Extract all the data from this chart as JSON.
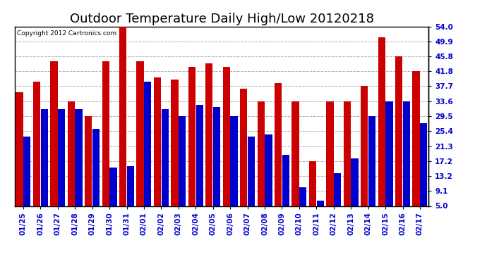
{
  "title": "Outdoor Temperature Daily High/Low 20120218",
  "copyright": "Copyright 2012 Cartronics.com",
  "dates": [
    "01/25",
    "01/26",
    "01/27",
    "01/28",
    "01/29",
    "01/30",
    "01/31",
    "02/01",
    "02/02",
    "02/03",
    "02/04",
    "02/05",
    "02/06",
    "02/07",
    "02/08",
    "02/09",
    "02/10",
    "02/11",
    "02/12",
    "02/13",
    "02/14",
    "02/15",
    "02/16",
    "02/17"
  ],
  "highs": [
    36.0,
    39.0,
    44.5,
    33.6,
    29.5,
    44.5,
    54.0,
    44.5,
    40.0,
    39.5,
    43.0,
    44.0,
    43.0,
    37.0,
    33.6,
    38.5,
    33.6,
    17.2,
    33.6,
    33.6,
    37.7,
    51.0,
    45.8,
    41.8
  ],
  "lows": [
    24.0,
    31.5,
    31.5,
    31.5,
    26.0,
    15.5,
    15.8,
    39.0,
    31.5,
    29.5,
    32.5,
    32.0,
    29.5,
    24.0,
    24.5,
    19.0,
    10.0,
    6.5,
    14.0,
    18.0,
    29.5,
    33.6,
    33.6,
    27.5
  ],
  "high_color": "#cc0000",
  "low_color": "#0000cc",
  "bg_color": "#ffffff",
  "grid_color": "#b0b0b0",
  "yticks": [
    5.0,
    9.1,
    13.2,
    17.2,
    21.3,
    25.4,
    29.5,
    33.6,
    37.7,
    41.8,
    45.8,
    49.9,
    54.0
  ],
  "ymin": 5.0,
  "ymax": 54.0,
  "title_fontsize": 13,
  "tick_fontsize": 7.5,
  "copyright_fontsize": 6.5
}
